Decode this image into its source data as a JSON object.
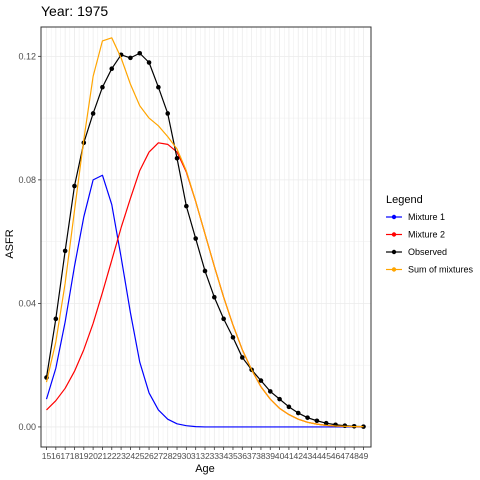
{
  "chart_data": {
    "type": "line",
    "title": "Year: 1975",
    "xlabel": "Age",
    "ylabel": "ASFR",
    "categories": [
      "15",
      "16",
      "17",
      "18",
      "19",
      "20",
      "21",
      "22",
      "23",
      "24",
      "25",
      "26",
      "27",
      "28",
      "29",
      "30",
      "31",
      "32",
      "33",
      "34",
      "35",
      "36",
      "37",
      "38",
      "39",
      "40",
      "41",
      "42",
      "43",
      "44",
      "45",
      "46",
      "47",
      "48",
      "49"
    ],
    "yticks": [
      "0.00",
      "0.04",
      "0.08",
      "0.12"
    ],
    "ylim": [
      -0.0065,
      0.1295
    ],
    "grid": true,
    "legend": {
      "title": "Legend",
      "position": "right"
    },
    "series": [
      {
        "name": "Mixture 1",
        "color": "#0000ff",
        "markers": false,
        "values": [
          0.009,
          0.019,
          0.034,
          0.052,
          0.068,
          0.08,
          0.0815,
          0.072,
          0.055,
          0.037,
          0.021,
          0.011,
          0.0055,
          0.0025,
          0.001,
          0.0004,
          0.0001,
          0,
          0,
          0,
          0,
          0,
          0,
          0,
          0,
          0,
          0,
          0,
          0,
          0,
          0,
          0,
          0,
          0,
          0
        ]
      },
      {
        "name": "Mixture 2",
        "color": "#ff0000",
        "markers": false,
        "values": [
          0.0055,
          0.0085,
          0.0125,
          0.018,
          0.025,
          0.0335,
          0.0435,
          0.054,
          0.0645,
          0.074,
          0.083,
          0.089,
          0.092,
          0.0915,
          0.089,
          0.0825,
          0.073,
          0.0625,
          0.052,
          0.042,
          0.033,
          0.025,
          0.0185,
          0.013,
          0.009,
          0.006,
          0.004,
          0.0025,
          0.0015,
          0.0009,
          0.0005,
          0.0003,
          0.0002,
          0.0001,
          0.0001
        ]
      },
      {
        "name": "Observed",
        "color": "#000000",
        "markers": true,
        "values": [
          0.016,
          0.035,
          0.057,
          0.078,
          0.092,
          0.1015,
          0.11,
          0.116,
          0.1205,
          0.1195,
          0.121,
          0.118,
          0.11,
          0.1015,
          0.087,
          0.0715,
          0.061,
          0.0505,
          0.042,
          0.035,
          0.029,
          0.0225,
          0.0185,
          0.015,
          0.0115,
          0.009,
          0.0065,
          0.0045,
          0.003,
          0.002,
          0.0012,
          0.0007,
          0.0004,
          0.0002,
          0.0001
        ]
      },
      {
        "name": "Sum of mixtures",
        "color": "#ffa500",
        "markers": false,
        "values": [
          0.0145,
          0.0275,
          0.0465,
          0.07,
          0.093,
          0.1135,
          0.125,
          0.126,
          0.1195,
          0.111,
          0.104,
          0.1,
          0.0975,
          0.094,
          0.09,
          0.0829,
          0.0731,
          0.0625,
          0.052,
          0.042,
          0.033,
          0.025,
          0.0185,
          0.013,
          0.009,
          0.006,
          0.004,
          0.0025,
          0.0015,
          0.0009,
          0.0005,
          0.0003,
          0.0002,
          0.0001,
          0.0001
        ]
      }
    ]
  }
}
